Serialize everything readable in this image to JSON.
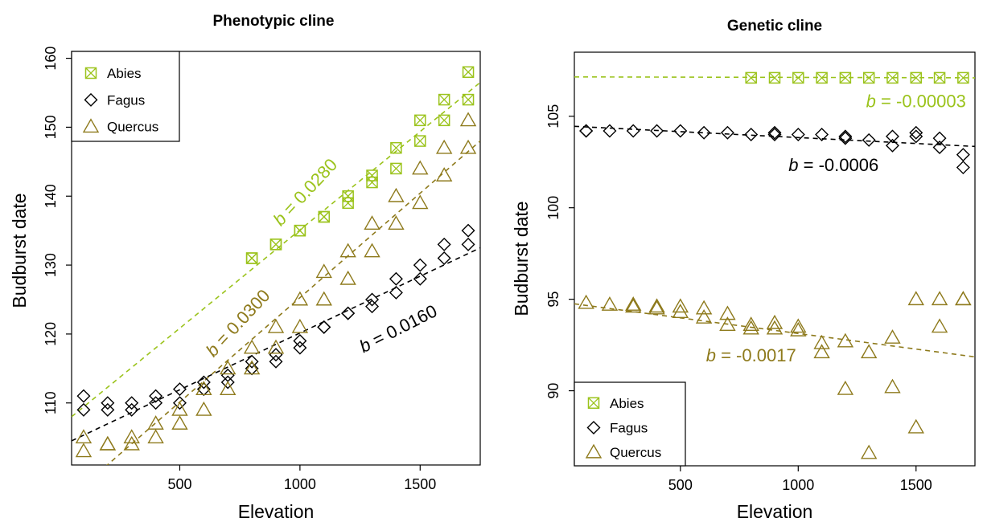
{
  "colors": {
    "abies": "#9BC31C",
    "fagus": "#000000",
    "quercus": "#8E7A1C",
    "fit_abies": "#9BC31C",
    "fit_fagus": "#000000",
    "fit_quercus": "#8E7A1C"
  },
  "chart_data": [
    {
      "type": "scatter",
      "title": "Phenotypic cline",
      "xlabel": "Elevation",
      "ylabel": "Budburst date",
      "xlim": [
        50,
        1750
      ],
      "ylim": [
        101,
        161
      ],
      "xticks": [
        500,
        1000,
        1500
      ],
      "yticks": [
        110,
        120,
        130,
        140,
        150,
        160
      ],
      "grid": false,
      "legend_position": "top-left",
      "legend": [
        "Abies",
        "Fagus",
        "Quercus"
      ],
      "series": [
        {
          "name": "Abies",
          "marker": "boxed-x",
          "points": [
            [
              800,
              131
            ],
            [
              800,
              131
            ],
            [
              900,
              133
            ],
            [
              900,
              133
            ],
            [
              1000,
              135
            ],
            [
              1000,
              135
            ],
            [
              1100,
              137
            ],
            [
              1100,
              137
            ],
            [
              1200,
              139
            ],
            [
              1200,
              140
            ],
            [
              1300,
              142
            ],
            [
              1300,
              143
            ],
            [
              1400,
              144
            ],
            [
              1400,
              147
            ],
            [
              1500,
              148
            ],
            [
              1500,
              151
            ],
            [
              1600,
              151
            ],
            [
              1600,
              154
            ],
            [
              1700,
              154
            ],
            [
              1700,
              158
            ]
          ]
        },
        {
          "name": "Fagus",
          "marker": "diamond",
          "points": [
            [
              100,
              109
            ],
            [
              100,
              111
            ],
            [
              200,
              109
            ],
            [
              200,
              110
            ],
            [
              300,
              109
            ],
            [
              300,
              110
            ],
            [
              400,
              110
            ],
            [
              400,
              111
            ],
            [
              500,
              110
            ],
            [
              500,
              112
            ],
            [
              600,
              112
            ],
            [
              600,
              113
            ],
            [
              700,
              113
            ],
            [
              700,
              114
            ],
            [
              800,
              115
            ],
            [
              800,
              116
            ],
            [
              900,
              116
            ],
            [
              900,
              117
            ],
            [
              1000,
              118
            ],
            [
              1000,
              119
            ],
            [
              1100,
              121
            ],
            [
              1100,
              121
            ],
            [
              1200,
              123
            ],
            [
              1200,
              123
            ],
            [
              1300,
              124
            ],
            [
              1300,
              125
            ],
            [
              1400,
              126
            ],
            [
              1400,
              128
            ],
            [
              1500,
              128
            ],
            [
              1500,
              130
            ],
            [
              1600,
              131
            ],
            [
              1600,
              133
            ],
            [
              1700,
              133
            ],
            [
              1700,
              135
            ]
          ]
        },
        {
          "name": "Quercus",
          "marker": "triangle",
          "points": [
            [
              100,
              103
            ],
            [
              100,
              105
            ],
            [
              200,
              104
            ],
            [
              200,
              104
            ],
            [
              300,
              104
            ],
            [
              300,
              105
            ],
            [
              400,
              105
            ],
            [
              400,
              107
            ],
            [
              500,
              107
            ],
            [
              500,
              109
            ],
            [
              600,
              109
            ],
            [
              600,
              112
            ],
            [
              700,
              112
            ],
            [
              700,
              115
            ],
            [
              800,
              115
            ],
            [
              800,
              118
            ],
            [
              900,
              118
            ],
            [
              900,
              121
            ],
            [
              1000,
              121
            ],
            [
              1000,
              125
            ],
            [
              1100,
              125
            ],
            [
              1100,
              129
            ],
            [
              1200,
              128
            ],
            [
              1200,
              132
            ],
            [
              1300,
              132
            ],
            [
              1300,
              136
            ],
            [
              1400,
              136
            ],
            [
              1400,
              140
            ],
            [
              1500,
              139
            ],
            [
              1500,
              144
            ],
            [
              1600,
              143
            ],
            [
              1600,
              147
            ],
            [
              1700,
              147
            ],
            [
              1700,
              151
            ]
          ]
        }
      ],
      "fits": [
        {
          "series": "Abies",
          "x": [
            50,
            1750
          ],
          "y": [
            108,
            156.5
          ]
        },
        {
          "series": "Fagus",
          "x": [
            50,
            1750
          ],
          "y": [
            104.5,
            132.5
          ]
        },
        {
          "series": "Quercus",
          "x": [
            50,
            1750
          ],
          "y": [
            96.5,
            148
          ]
        }
      ],
      "annotations": [
        {
          "text": "b = 0.0280",
          "series": "Abies",
          "x": 1040,
          "y": 140,
          "angle": -47
        },
        {
          "text": "b = 0.0300",
          "series": "Quercus",
          "x": 760,
          "y": 121,
          "angle": -47
        },
        {
          "text": "b = 0.0160",
          "series": "Fagus",
          "x": 1420,
          "y": 120,
          "angle": -27
        }
      ]
    },
    {
      "type": "scatter",
      "title": "Genetic cline",
      "xlabel": "Elevation",
      "ylabel": "Budburst date",
      "xlim": [
        50,
        1750
      ],
      "ylim": [
        85.9,
        108.5
      ],
      "xticks": [
        500,
        1000,
        1500
      ],
      "yticks": [
        90,
        95,
        100,
        105
      ],
      "grid": false,
      "legend_position": "bottom-left",
      "legend": [
        "Abies",
        "Fagus",
        "Quercus"
      ],
      "series": [
        {
          "name": "Abies",
          "marker": "boxed-x",
          "points": [
            [
              800,
              107.1
            ],
            [
              900,
              107.1
            ],
            [
              1000,
              107.1
            ],
            [
              1100,
              107.1
            ],
            [
              1200,
              107.1
            ],
            [
              1300,
              107.1
            ],
            [
              1400,
              107.1
            ],
            [
              1500,
              107.1
            ],
            [
              1600,
              107.1
            ],
            [
              1700,
              107.1
            ]
          ]
        },
        {
          "name": "Fagus",
          "marker": "diamond",
          "points": [
            [
              100,
              104.2
            ],
            [
              100,
              104.2
            ],
            [
              200,
              104.2
            ],
            [
              300,
              104.2
            ],
            [
              400,
              104.2
            ],
            [
              500,
              104.2
            ],
            [
              600,
              104.1
            ],
            [
              700,
              104.1
            ],
            [
              800,
              104.0
            ],
            [
              900,
              104.0
            ],
            [
              900,
              104.1
            ],
            [
              1000,
              104.0
            ],
            [
              1100,
              104.0
            ],
            [
              1200,
              103.8
            ],
            [
              1200,
              103.9
            ],
            [
              1300,
              103.7
            ],
            [
              1400,
              103.4
            ],
            [
              1400,
              103.9
            ],
            [
              1500,
              103.9
            ],
            [
              1500,
              104.1
            ],
            [
              1600,
              103.3
            ],
            [
              1600,
              103.8
            ],
            [
              1700,
              102.2
            ],
            [
              1700,
              102.9
            ]
          ]
        },
        {
          "name": "Quercus",
          "marker": "triangle",
          "points": [
            [
              100,
              94.8
            ],
            [
              200,
              94.7
            ],
            [
              300,
              94.7
            ],
            [
              300,
              94.6
            ],
            [
              400,
              94.6
            ],
            [
              400,
              94.5
            ],
            [
              500,
              94.6
            ],
            [
              500,
              94.3
            ],
            [
              600,
              94.5
            ],
            [
              600,
              94.0
            ],
            [
              700,
              94.2
            ],
            [
              700,
              93.6
            ],
            [
              800,
              93.6
            ],
            [
              800,
              93.4
            ],
            [
              900,
              93.7
            ],
            [
              900,
              93.4
            ],
            [
              1000,
              93.5
            ],
            [
              1000,
              93.3
            ],
            [
              1100,
              92.6
            ],
            [
              1100,
              92.1
            ],
            [
              1200,
              92.7
            ],
            [
              1200,
              90.1
            ],
            [
              1300,
              92.1
            ],
            [
              1300,
              86.6
            ],
            [
              1400,
              92.9
            ],
            [
              1400,
              90.2
            ],
            [
              1500,
              95.0
            ],
            [
              1500,
              88.0
            ],
            [
              1600,
              95.0
            ],
            [
              1600,
              93.5
            ],
            [
              1700,
              95.0
            ],
            [
              1700,
              95.0
            ]
          ]
        }
      ],
      "fits": [
        {
          "series": "Abies",
          "x": [
            50,
            1750
          ],
          "y": [
            107.15,
            107.1
          ]
        },
        {
          "series": "Fagus",
          "x": [
            50,
            1750
          ],
          "y": [
            104.45,
            103.35
          ]
        },
        {
          "series": "Quercus",
          "x": [
            50,
            1750
          ],
          "y": [
            94.75,
            91.85
          ]
        }
      ],
      "annotations": [
        {
          "text": "b = -0.00003",
          "series": "Abies",
          "x": 1500,
          "y": 105.5,
          "angle": 0
        },
        {
          "text": "b = -0.0006",
          "series": "Fagus",
          "x": 1150,
          "y": 102.0,
          "angle": 0
        },
        {
          "text": "b = -0.0017",
          "series": "Quercus",
          "x": 800,
          "y": 91.6,
          "angle": 0
        }
      ]
    }
  ]
}
